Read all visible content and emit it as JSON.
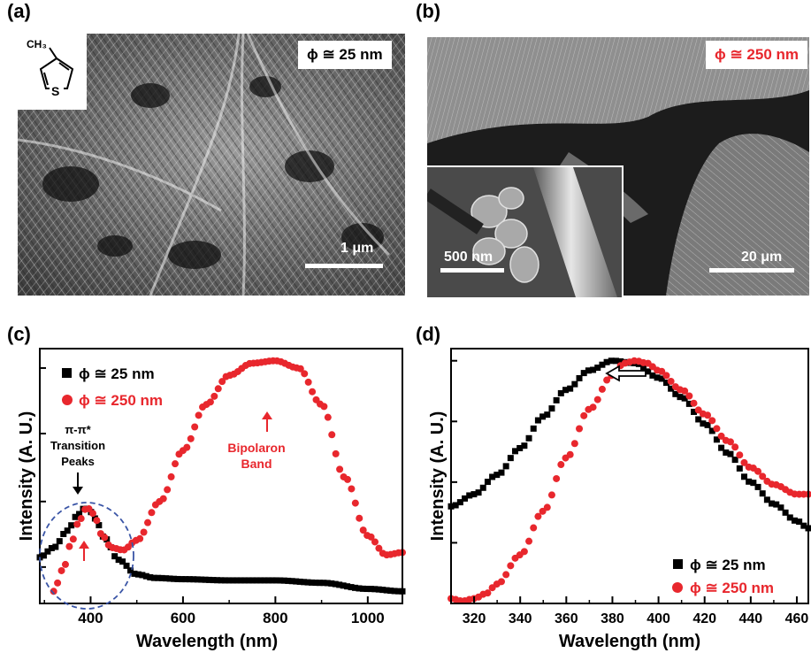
{
  "panels": {
    "a": {
      "label": "(a)",
      "diameter": "ϕ ≅ 25 nm",
      "scale": "1 μm",
      "molecule_methyl": "CH₃",
      "molecule_atom": "S"
    },
    "b": {
      "label": "(b)",
      "diameter": "ϕ ≅ 250 nm",
      "scale": "20 μm",
      "inset_scale": "500 nm"
    },
    "c": {
      "label": "(c)"
    },
    "d": {
      "label": "(d)"
    }
  },
  "colors": {
    "black_series": "#000000",
    "red_series": "#e8272d",
    "circle": "#3a55a6"
  },
  "chart_data": [
    {
      "type": "line",
      "xlabel": "Wavelength (nm)",
      "ylabel": "Intensity (A. U.)",
      "xlim": [
        290,
        1075
      ],
      "ylim": [
        0,
        1.05
      ],
      "xticks": [
        400,
        600,
        800,
        1000
      ],
      "legend": {
        "placement": "top-left",
        "entries": [
          "ϕ ≅ 25 nm",
          "ϕ ≅ 250 nm"
        ]
      },
      "annotations": {
        "transition_line1": "π-π*",
        "transition_line2": "Transition",
        "transition_line3": "Peaks",
        "bipolaron_line1": "Bipolaron",
        "bipolaron_line2": "Band"
      },
      "series": [
        {
          "name": "ϕ ≅ 25 nm",
          "color": "#000000",
          "marker": "square",
          "x": [
            290,
            320,
            350,
            370,
            385,
            395,
            410,
            430,
            460,
            500,
            540,
            600,
            700,
            800,
            900,
            1000,
            1075
          ],
          "y": [
            0.19,
            0.23,
            0.3,
            0.36,
            0.39,
            0.39,
            0.35,
            0.27,
            0.18,
            0.12,
            0.105,
            0.1,
            0.095,
            0.095,
            0.085,
            0.06,
            0.05
          ]
        },
        {
          "name": "ϕ ≅ 250 nm",
          "color": "#e8272d",
          "marker": "circle",
          "x": [
            320,
            340,
            360,
            375,
            390,
            400,
            410,
            425,
            445,
            470,
            500,
            550,
            600,
            650,
            700,
            750,
            800,
            850,
            900,
            950,
            1000,
            1040,
            1075
          ],
          "y": [
            0.05,
            0.14,
            0.26,
            0.34,
            0.39,
            0.39,
            0.35,
            0.28,
            0.23,
            0.22,
            0.26,
            0.42,
            0.63,
            0.82,
            0.94,
            0.99,
            1.0,
            0.97,
            0.82,
            0.52,
            0.28,
            0.2,
            0.21
          ]
        }
      ]
    },
    {
      "type": "line",
      "xlabel": "Wavelength (nm)",
      "ylabel": "Intensity (A. U.)",
      "xlim": [
        310,
        465
      ],
      "ylim": [
        0,
        1.05
      ],
      "xticks": [
        320,
        340,
        360,
        380,
        400,
        420,
        440,
        460
      ],
      "legend": {
        "placement": "bottom-right",
        "entries": [
          "ϕ ≅ 25 nm",
          "ϕ ≅ 250 nm"
        ]
      },
      "annotations": {
        "shift_arrow": "blue-shift"
      },
      "series": [
        {
          "name": "ϕ ≅ 25 nm",
          "color": "#000000",
          "marker": "square",
          "x": [
            310,
            320,
            330,
            340,
            350,
            360,
            370,
            380,
            390,
            400,
            410,
            420,
            430,
            440,
            450,
            460,
            465
          ],
          "y": [
            0.4,
            0.45,
            0.53,
            0.64,
            0.77,
            0.88,
            0.96,
            1.0,
            0.99,
            0.93,
            0.85,
            0.74,
            0.62,
            0.5,
            0.41,
            0.34,
            0.31
          ]
        },
        {
          "name": "ϕ ≅ 250 nm",
          "color": "#e8272d",
          "marker": "circle",
          "x": [
            310,
            315,
            320,
            325,
            330,
            340,
            350,
            360,
            370,
            380,
            385,
            390,
            395,
            400,
            410,
            420,
            430,
            440,
            450,
            460,
            465
          ],
          "y": [
            0.02,
            0.01,
            0.02,
            0.04,
            0.08,
            0.2,
            0.38,
            0.6,
            0.8,
            0.94,
            0.99,
            1.0,
            0.99,
            0.96,
            0.88,
            0.78,
            0.67,
            0.56,
            0.49,
            0.45,
            0.45
          ]
        }
      ]
    }
  ]
}
